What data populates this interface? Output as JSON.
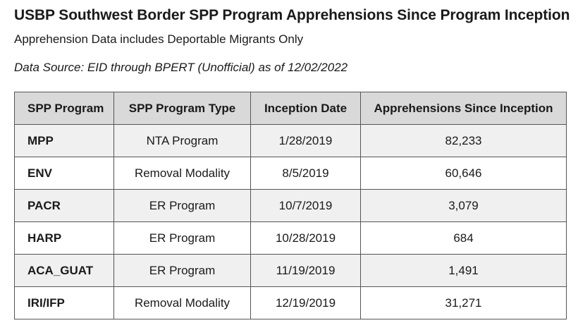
{
  "title": "USBP Southwest Border SPP Program Apprehensions Since Program Inception",
  "subtitle": "Apprehension Data includes Deportable Migrants Only",
  "source": "Data Source: EID through BPERT (Unofficial) as of 12/02/2022",
  "table": {
    "headers": [
      "SPP Program",
      "SPP Program Type",
      "Inception Date",
      "Apprehensions Since Inception"
    ],
    "rows": [
      [
        "MPP",
        "NTA Program",
        "1/28/2019",
        "82,233"
      ],
      [
        "ENV",
        "Removal Modality",
        "8/5/2019",
        "60,646"
      ],
      [
        "PACR",
        "ER Program",
        "10/7/2019",
        "3,079"
      ],
      [
        "HARP",
        "ER Program",
        "10/28/2019",
        "684"
      ],
      [
        "ACA_GUAT",
        "ER Program",
        "11/19/2019",
        "1,491"
      ],
      [
        "IRI/IFP",
        "Removal Modality",
        "12/19/2019",
        "31,271"
      ]
    ]
  },
  "colors": {
    "header_bg": "#d9d9d9",
    "odd_row_bg": "#f0f0f0",
    "even_row_bg": "#ffffff",
    "border": "#555555"
  }
}
